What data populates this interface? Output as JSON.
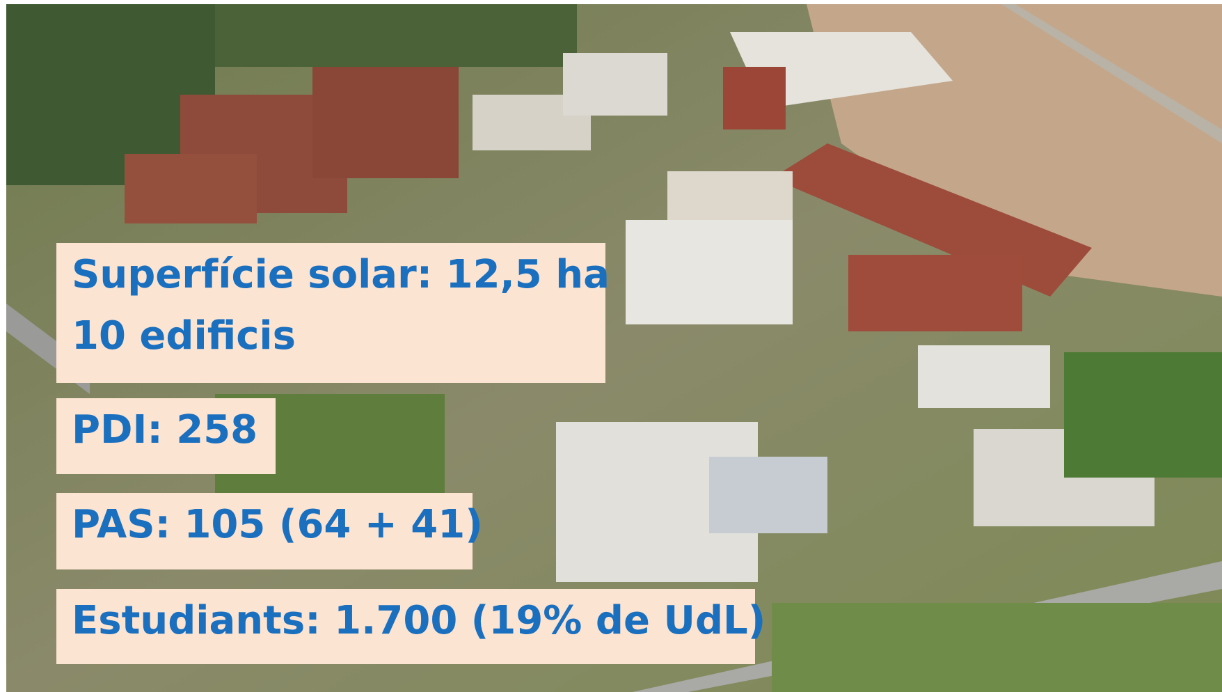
{
  "boxes": [
    {
      "lines": [
        "Superfície solar: 12,5 ha",
        "10 edificis"
      ]
    },
    {
      "lines": [
        "PDI: 258"
      ]
    },
    {
      "lines": [
        "PAS: 105 (64 + 41)"
      ]
    },
    {
      "lines": [
        "Estudiants: 1.700 (19% de UdL)"
      ]
    }
  ]
}
